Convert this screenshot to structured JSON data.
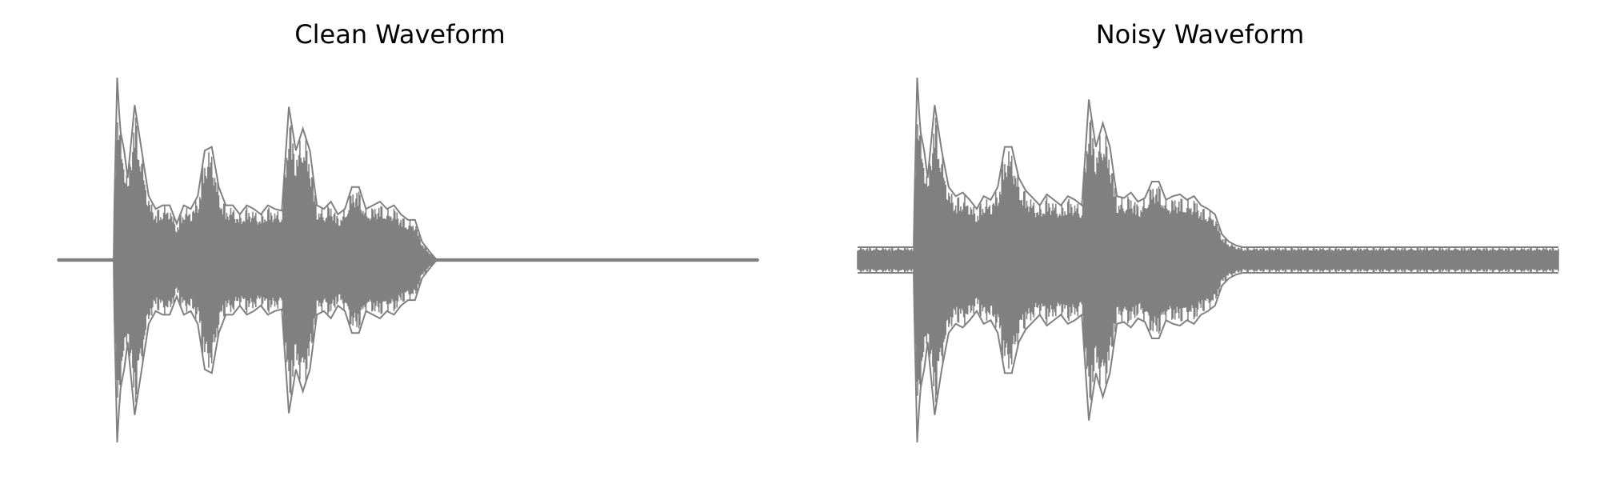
{
  "figure": {
    "background": "#ffffff",
    "waveform_color": "#808080"
  },
  "chart_data": [
    {
      "type": "line",
      "title": "Clean Waveform",
      "xlabel": "",
      "ylabel": "",
      "axes_visible": false,
      "grid": false,
      "legend": "none",
      "ylim": [
        -1,
        1
      ],
      "x": [
        0,
        0.05,
        0.08,
        0.081,
        0.085,
        0.088,
        0.09,
        0.095,
        0.1,
        0.11,
        0.12,
        0.13,
        0.14,
        0.15,
        0.16,
        0.17,
        0.18,
        0.19,
        0.2,
        0.21,
        0.22,
        0.23,
        0.24,
        0.25,
        0.26,
        0.27,
        0.28,
        0.29,
        0.3,
        0.31,
        0.32,
        0.33,
        0.34,
        0.35,
        0.36,
        0.37,
        0.38,
        0.39,
        0.4,
        0.41,
        0.42,
        0.43,
        0.44,
        0.45,
        0.46,
        0.47,
        0.48,
        0.49,
        0.5,
        0.51,
        0.52,
        0.53,
        0.54,
        0.55,
        0.6,
        0.7,
        0.8,
        0.9,
        1.0
      ],
      "envelope": [
        0.005,
        0.005,
        0.005,
        0.3,
        1.0,
        0.8,
        0.7,
        0.6,
        0.45,
        0.85,
        0.6,
        0.35,
        0.28,
        0.3,
        0.3,
        0.2,
        0.3,
        0.28,
        0.35,
        0.6,
        0.62,
        0.4,
        0.3,
        0.3,
        0.25,
        0.3,
        0.28,
        0.25,
        0.3,
        0.28,
        0.27,
        0.84,
        0.6,
        0.72,
        0.6,
        0.3,
        0.28,
        0.32,
        0.25,
        0.28,
        0.4,
        0.4,
        0.28,
        0.3,
        0.32,
        0.28,
        0.3,
        0.25,
        0.22,
        0.22,
        0.1,
        0.05,
        0.005,
        0.005,
        0.005,
        0.005,
        0.005,
        0.005,
        0.005
      ]
    },
    {
      "type": "line",
      "title": "Noisy Waveform",
      "xlabel": "",
      "ylabel": "",
      "axes_visible": false,
      "grid": false,
      "legend": "none",
      "ylim": [
        -1,
        1
      ],
      "x": [
        0,
        0.05,
        0.08,
        0.081,
        0.085,
        0.088,
        0.09,
        0.095,
        0.1,
        0.11,
        0.12,
        0.13,
        0.14,
        0.15,
        0.16,
        0.17,
        0.18,
        0.19,
        0.2,
        0.21,
        0.22,
        0.23,
        0.24,
        0.25,
        0.26,
        0.27,
        0.28,
        0.29,
        0.3,
        0.31,
        0.32,
        0.33,
        0.34,
        0.35,
        0.36,
        0.37,
        0.38,
        0.39,
        0.4,
        0.41,
        0.42,
        0.43,
        0.44,
        0.45,
        0.46,
        0.47,
        0.48,
        0.49,
        0.5,
        0.51,
        0.52,
        0.53,
        0.54,
        0.55,
        0.6,
        0.7,
        0.8,
        0.9,
        1.0
      ],
      "envelope": [
        0.07,
        0.07,
        0.07,
        0.3,
        1.0,
        0.8,
        0.7,
        0.6,
        0.45,
        0.85,
        0.6,
        0.4,
        0.35,
        0.37,
        0.33,
        0.28,
        0.35,
        0.33,
        0.4,
        0.62,
        0.62,
        0.45,
        0.38,
        0.34,
        0.3,
        0.36,
        0.33,
        0.3,
        0.35,
        0.33,
        0.3,
        0.88,
        0.62,
        0.75,
        0.62,
        0.35,
        0.34,
        0.37,
        0.32,
        0.34,
        0.43,
        0.43,
        0.33,
        0.35,
        0.36,
        0.33,
        0.35,
        0.3,
        0.28,
        0.25,
        0.14,
        0.1,
        0.08,
        0.07,
        0.07,
        0.07,
        0.07,
        0.07,
        0.07
      ]
    }
  ]
}
